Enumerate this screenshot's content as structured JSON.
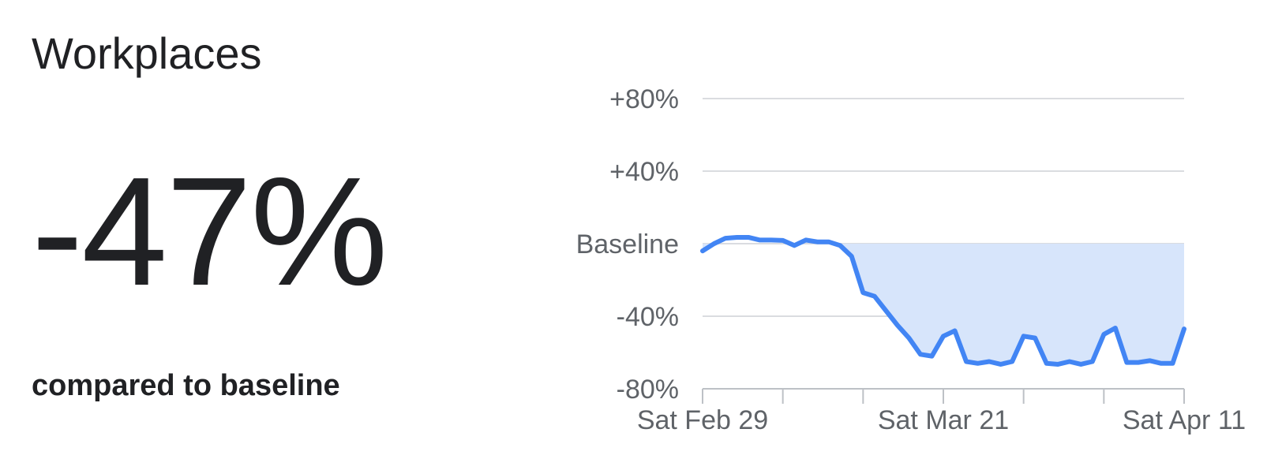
{
  "card": {
    "title": "Workplaces",
    "value": "-47%",
    "caption": "compared to baseline"
  },
  "chart_data": {
    "type": "area",
    "baseline_label": "Baseline",
    "y_ticks": [
      {
        "value": 80,
        "label": "+80%"
      },
      {
        "value": 40,
        "label": "+40%"
      },
      {
        "value": 0,
        "label": "Baseline"
      },
      {
        "value": -40,
        "label": "-40%"
      },
      {
        "value": -80,
        "label": "-80%"
      }
    ],
    "ylim": [
      -80,
      80
    ],
    "x_tick_labels": [
      {
        "date": "2020-02-29",
        "label": "Sat Feb 29"
      },
      {
        "date": "2020-03-21",
        "label": "Sat Mar 21"
      },
      {
        "date": "2020-04-11",
        "label": "Sat Apr 11"
      }
    ],
    "x_tick_marks": [
      "2020-02-29",
      "2020-03-07",
      "2020-03-14",
      "2020-03-21",
      "2020-03-28",
      "2020-04-04",
      "2020-04-11"
    ],
    "x_start": "2020-02-29",
    "x_end": "2020-04-11",
    "series": [
      {
        "dates": [
          "2020-02-29",
          "2020-03-01",
          "2020-03-02",
          "2020-03-03",
          "2020-03-04",
          "2020-03-05",
          "2020-03-06",
          "2020-03-07",
          "2020-03-08",
          "2020-03-09",
          "2020-03-10",
          "2020-03-11",
          "2020-03-12",
          "2020-03-13",
          "2020-03-14",
          "2020-03-15",
          "2020-03-16",
          "2020-03-17",
          "2020-03-18",
          "2020-03-19",
          "2020-03-20",
          "2020-03-21",
          "2020-03-22",
          "2020-03-23",
          "2020-03-24",
          "2020-03-25",
          "2020-03-26",
          "2020-03-27",
          "2020-03-28",
          "2020-03-29",
          "2020-03-30",
          "2020-03-31",
          "2020-04-01",
          "2020-04-02",
          "2020-04-03",
          "2020-04-04",
          "2020-04-05",
          "2020-04-06",
          "2020-04-07",
          "2020-04-08",
          "2020-04-09",
          "2020-04-10",
          "2020-04-11"
        ],
        "values": [
          -4,
          0,
          3,
          3.5,
          3.5,
          2,
          2,
          1.8,
          -1,
          2,
          1,
          1,
          -1,
          -7,
          -27,
          -29,
          -37,
          -45,
          -52,
          -61,
          -62,
          -51,
          -48,
          -65,
          -66,
          -65,
          -66.5,
          -65,
          -51,
          -52,
          -66,
          -66.5,
          -65,
          -66.5,
          -65,
          -50,
          -46.5,
          -65.5,
          -65.5,
          -64.5,
          -66,
          -66,
          -47
        ]
      }
    ],
    "colors": {
      "line": "#4285f4",
      "fill": "#d7e5fb",
      "grid": "#dadce0",
      "axis": "#bdc1c6",
      "text": "#5f6368"
    }
  }
}
